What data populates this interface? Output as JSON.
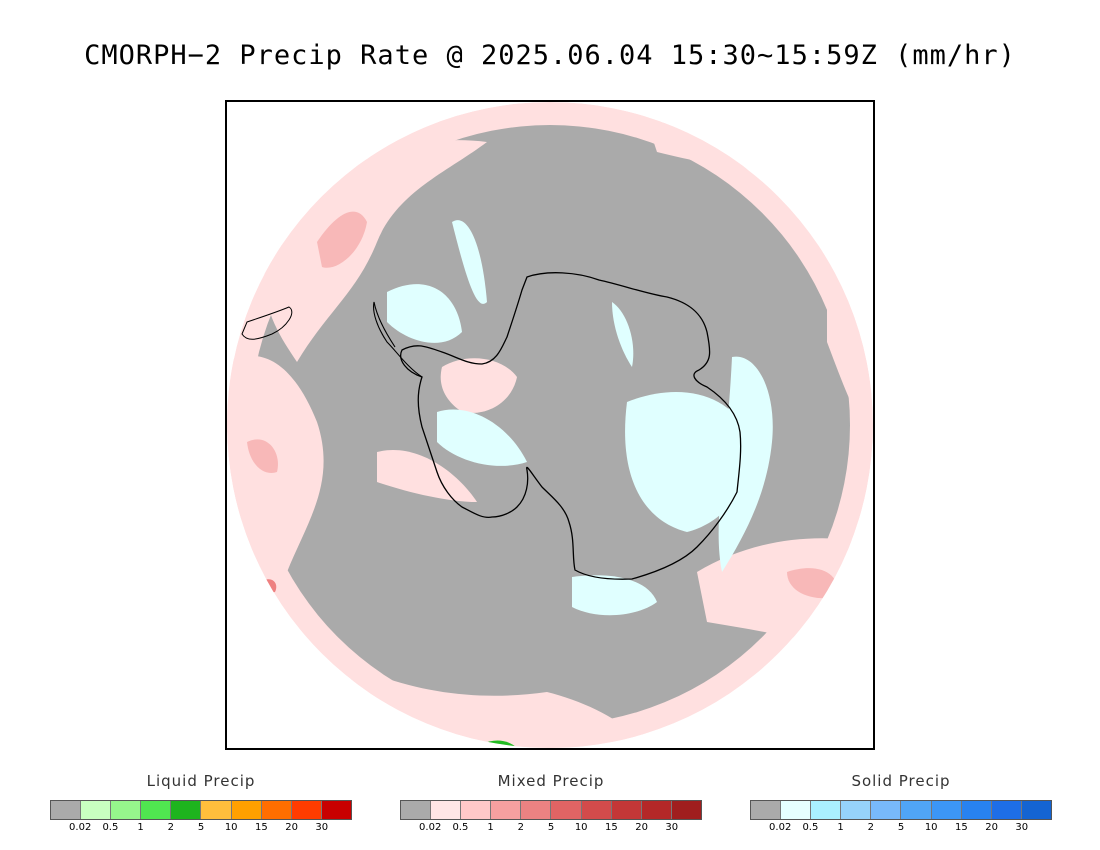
{
  "title": "CMORPH−2 Precip Rate @ 2025.06.04 15:30~15:59Z (mm/hr)",
  "map": {
    "projection": "south-polar-stereographic",
    "colors": {
      "no_precip": "#aaaaaa",
      "mixed_light": "#ffe0e0",
      "mixed_mid": "#f8b8b8",
      "mixed_strong": "#ee8080",
      "solid_light": "#e0ffff",
      "liquid_green": "#22bb22",
      "coastline": "#000000"
    }
  },
  "legends": [
    {
      "title": "Liquid Precip",
      "colors": [
        "#aaaaaa",
        "#c8ffc0",
        "#96f58c",
        "#50e650",
        "#1eb41e",
        "#ffbe3c",
        "#ffa000",
        "#ff6e00",
        "#ff3c00",
        "#c80000"
      ],
      "ticks": [
        "0.02",
        "0.5",
        "1",
        "2",
        "5",
        "10",
        "15",
        "20",
        "30"
      ]
    },
    {
      "title": "Mixed Precip",
      "colors": [
        "#aaaaaa",
        "#ffe6e6",
        "#ffc8c8",
        "#f5a0a0",
        "#eb8282",
        "#e16464",
        "#d24b4b",
        "#c33737",
        "#b42828",
        "#a01e1e"
      ],
      "ticks": [
        "0.02",
        "0.5",
        "1",
        "2",
        "5",
        "10",
        "15",
        "20",
        "30"
      ]
    },
    {
      "title": "Solid Precip",
      "colors": [
        "#aaaaaa",
        "#e6ffff",
        "#aaf0ff",
        "#96d2fa",
        "#78b9fa",
        "#50a5f5",
        "#3c96f5",
        "#2882f0",
        "#1e6ee6",
        "#1464d2"
      ],
      "ticks": [
        "0.02",
        "0.5",
        "1",
        "2",
        "5",
        "10",
        "15",
        "20",
        "30"
      ]
    }
  ]
}
